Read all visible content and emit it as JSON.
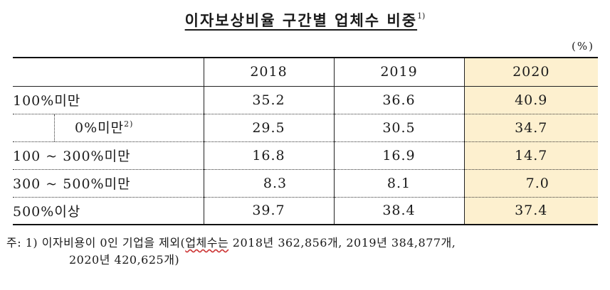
{
  "title": {
    "text": "이자보상비율 구간별 업체수 비중",
    "footnote_mark": "1)"
  },
  "unit": "(%)",
  "table": {
    "header": {
      "corner": "",
      "years": [
        "2018",
        "2019",
        "2020"
      ]
    },
    "rows": [
      {
        "label": "100%미만",
        "footnote": "",
        "values": [
          "35.2",
          "36.6",
          "40.9"
        ]
      },
      {
        "label": "0%미만",
        "footnote": "2)",
        "values": [
          "29.5",
          "30.5",
          "34.7"
        ]
      },
      {
        "label": "100 ~ 300%미만",
        "footnote": "",
        "values": [
          "16.8",
          "16.9",
          "14.7"
        ]
      },
      {
        "label": "300 ~ 500%미만",
        "footnote": "",
        "values": [
          "8.3",
          "8.1",
          "7.0"
        ]
      },
      {
        "label": "500%이상",
        "footnote": "",
        "values": [
          "39.7",
          "38.4",
          "37.4"
        ]
      }
    ],
    "highlight_column": "2020",
    "highlight_color": "#fdf0cf"
  },
  "note": {
    "prefix": "주: 1) 이자비용이 0인 기업을 제외(",
    "underlined": "업체수는",
    "rest": " 2018년 362,856개, 2019년 384,877개,",
    "line2": "2020년 420,625개)"
  }
}
